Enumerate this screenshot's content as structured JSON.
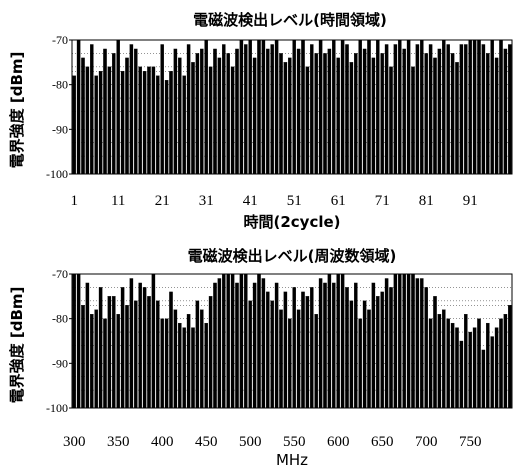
{
  "chart_data": [
    {
      "type": "bar",
      "title": "電磁波検出レベル(時間領域)",
      "ylabel": "電界強度 [dBm]",
      "xlabel": "時間(2cycle)",
      "ylim": [
        -100,
        -70
      ],
      "yticks": [
        "-70",
        "-80",
        "-90",
        "-100"
      ],
      "xticks": [
        "1",
        "11",
        "21",
        "31",
        "41",
        "51",
        "61",
        "71",
        "81",
        "91"
      ],
      "grid": "dotted horizontal",
      "bar_color": "#000000",
      "x": [
        1,
        2,
        3,
        4,
        5,
        6,
        7,
        8,
        9,
        10,
        11,
        12,
        13,
        14,
        15,
        16,
        17,
        18,
        19,
        20,
        21,
        22,
        23,
        24,
        25,
        26,
        27,
        28,
        29,
        30,
        31,
        32,
        33,
        34,
        35,
        36,
        37,
        38,
        39,
        40,
        41,
        42,
        43,
        44,
        45,
        46,
        47,
        48,
        49,
        50,
        51,
        52,
        53,
        54,
        55,
        56,
        57,
        58,
        59,
        60,
        61,
        62,
        63,
        64,
        65,
        66,
        67,
        68,
        69,
        70,
        71,
        72,
        73,
        74,
        75,
        76,
        77,
        78,
        79,
        80,
        81,
        82,
        83,
        84,
        85,
        86,
        87,
        88,
        89,
        90,
        91,
        92,
        93,
        94,
        95,
        96,
        97,
        98,
        99,
        100
      ],
      "values": [
        -78,
        -70,
        -74,
        -76,
        -71,
        -78,
        -77,
        -72,
        -76,
        -73,
        -70,
        -77,
        -74,
        -71,
        -72,
        -76,
        -77,
        -76,
        -76,
        -78,
        -71,
        -79,
        -77,
        -72,
        -74,
        -78,
        -71,
        -75,
        -73,
        -72,
        -70,
        -76,
        -72,
        -74,
        -71,
        -73,
        -76,
        -72,
        -70,
        -71,
        -70,
        -74,
        -70,
        -70,
        -72,
        -71,
        -70,
        -73,
        -75,
        -74,
        -70,
        -72,
        -70,
        -76,
        -71,
        -73,
        -70,
        -73,
        -72,
        -70,
        -74,
        -70,
        -71,
        -75,
        -73,
        -70,
        -72,
        -70,
        -74,
        -70,
        -73,
        -71,
        -76,
        -71,
        -70,
        -72,
        -70,
        -76,
        -71,
        -70,
        -73,
        -71,
        -74,
        -72,
        -70,
        -71,
        -73,
        -75,
        -71,
        -71,
        -70,
        -70,
        -70,
        -71,
        -73,
        -70,
        -74,
        -70,
        -72,
        -71
      ]
    },
    {
      "type": "bar",
      "title": "電磁波検出レベル(周波数領域)",
      "ylabel": "電界強度 [dBm]",
      "xlabel": "MHz",
      "ylim": [
        -100,
        -70
      ],
      "yticks": [
        "-70",
        "-80",
        "-90",
        "-100"
      ],
      "xticks": [
        "300",
        "350",
        "400",
        "450",
        "500",
        "550",
        "600",
        "650",
        "700",
        "750"
      ],
      "grid": "dotted horizontal",
      "bar_color": "#000000",
      "x": [
        300,
        305,
        310,
        315,
        320,
        325,
        330,
        335,
        340,
        345,
        350,
        355,
        360,
        365,
        370,
        375,
        380,
        385,
        390,
        395,
        400,
        405,
        410,
        415,
        420,
        425,
        430,
        435,
        440,
        445,
        450,
        455,
        460,
        465,
        470,
        475,
        480,
        485,
        490,
        495,
        500,
        505,
        510,
        515,
        520,
        525,
        530,
        535,
        540,
        545,
        550,
        555,
        560,
        565,
        570,
        575,
        580,
        585,
        590,
        595,
        600,
        605,
        610,
        615,
        620,
        625,
        630,
        635,
        640,
        645,
        650,
        655,
        660,
        665,
        670,
        675,
        680,
        685,
        690,
        695,
        700,
        705,
        710,
        715,
        720,
        725,
        730,
        735,
        740,
        745,
        750,
        755,
        760,
        765,
        770,
        775,
        780,
        785,
        790,
        795
      ],
      "values": [
        -70,
        -70,
        -77,
        -72,
        -79,
        -78,
        -73,
        -80,
        -75,
        -75,
        -79,
        -73,
        -77,
        -71,
        -76,
        -72,
        -73,
        -75,
        -70,
        -76,
        -80,
        -80,
        -74,
        -78,
        -81,
        -82,
        -79,
        -82,
        -76,
        -78,
        -81,
        -75,
        -72,
        -71,
        -70,
        -70,
        -70,
        -72,
        -70,
        -70,
        -76,
        -72,
        -70,
        -71,
        -74,
        -76,
        -72,
        -78,
        -74,
        -80,
        -73,
        -78,
        -74,
        -75,
        -73,
        -79,
        -71,
        -72,
        -70,
        -72,
        -70,
        -70,
        -73,
        -76,
        -72,
        -80,
        -76,
        -78,
        -72,
        -75,
        -74,
        -71,
        -73,
        -70,
        -70,
        -70,
        -70,
        -70,
        -71,
        -71,
        -73,
        -80,
        -75,
        -79,
        -78,
        -80,
        -81,
        -82,
        -85,
        -79,
        -83,
        -82,
        -80,
        -87,
        -81,
        -84,
        -82,
        -80,
        -79,
        -77
      ]
    }
  ]
}
